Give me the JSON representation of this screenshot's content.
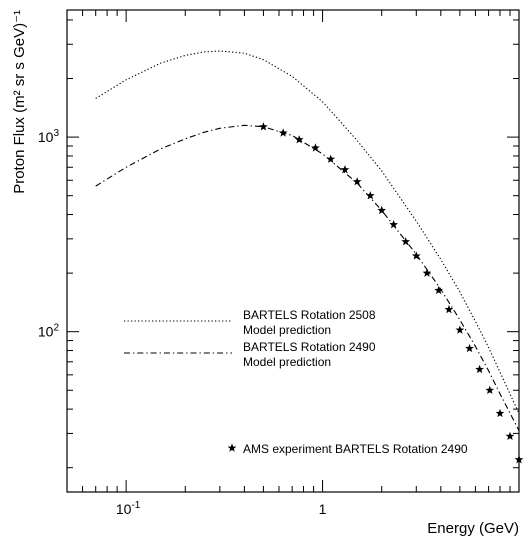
{
  "chart_data": {
    "type": "line",
    "title": "",
    "xlabel": "Energy (GeV)",
    "ylabel": "Proton Flux (m² sr s GeV)⁻¹",
    "xscale": "log",
    "yscale": "log",
    "xlim": [
      0.05,
      10
    ],
    "ylim": [
      15,
      4500
    ],
    "grid": false,
    "legend_placement": "center-left",
    "x_tick_labels": [
      {
        "value": 0.1,
        "base": "10",
        "exp": "-1"
      },
      {
        "value": 1,
        "base": "1",
        "exp": ""
      }
    ],
    "y_tick_labels": [
      {
        "value": 100,
        "base": "10",
        "exp": "2"
      },
      {
        "value": 1000,
        "base": "10",
        "exp": "3"
      }
    ],
    "series": [
      {
        "name": "BARTELS Rotation 2508",
        "subtitle": "Model prediction",
        "style": "dotted",
        "color": "#000000",
        "x": [
          0.07,
          0.1,
          0.15,
          0.2,
          0.25,
          0.3,
          0.4,
          0.5,
          0.7,
          1.0,
          1.5,
          2.0,
          3.0,
          4.0,
          5.0,
          6.0,
          7.0,
          8.0,
          10.0
        ],
        "y": [
          1580,
          1970,
          2400,
          2630,
          2740,
          2770,
          2700,
          2500,
          2050,
          1520,
          960,
          670,
          370,
          235,
          160,
          113,
          83,
          62,
          38
        ]
      },
      {
        "name": "BARTELS Rotation 2490",
        "subtitle": "Model prediction",
        "style": "dash-dot",
        "color": "#000000",
        "x": [
          0.07,
          0.1,
          0.15,
          0.2,
          0.25,
          0.3,
          0.4,
          0.5,
          0.7,
          1.0,
          1.5,
          2.0,
          3.0,
          4.0,
          5.0,
          6.0,
          7.0,
          8.0,
          10.0
        ],
        "y": [
          560,
          700,
          870,
          980,
          1060,
          1110,
          1150,
          1130,
          1020,
          820,
          580,
          420,
          250,
          165,
          115,
          84,
          63,
          48,
          31
        ]
      },
      {
        "name": "AMS experiment BARTELS Rotation 2490",
        "style": "markers",
        "marker": "star",
        "color": "#000000",
        "x": [
          0.5,
          0.63,
          0.76,
          0.92,
          1.1,
          1.3,
          1.5,
          1.75,
          2.0,
          2.3,
          2.65,
          3.0,
          3.4,
          3.9,
          4.4,
          5.0,
          5.6,
          6.3,
          7.1,
          8.0,
          9.0,
          10.0
        ],
        "y": [
          1130,
          1050,
          970,
          880,
          770,
          680,
          590,
          500,
          420,
          355,
          290,
          245,
          200,
          163,
          130,
          102,
          82,
          64,
          50,
          38,
          29,
          22
        ]
      }
    ]
  }
}
